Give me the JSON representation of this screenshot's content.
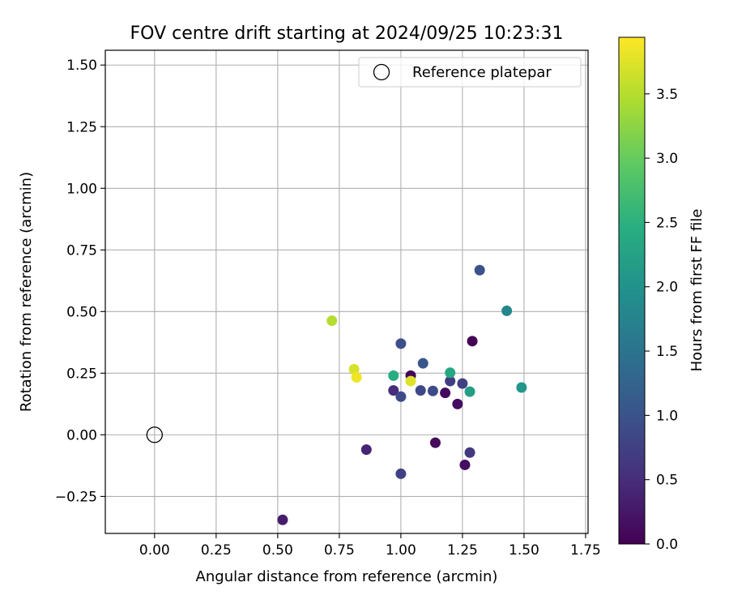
{
  "chart_data": {
    "type": "scatter",
    "title": "FOV centre drift starting at 2024/09/25 10:23:31",
    "xlabel": "Angular distance from reference (arcmin)",
    "ylabel": "Rotation from reference (arcmin)",
    "xlim": [
      -0.2,
      1.76
    ],
    "ylim": [
      -0.4,
      1.56
    ],
    "x_ticks": [
      0.0,
      0.25,
      0.5,
      0.75,
      1.0,
      1.25,
      1.5,
      1.75
    ],
    "x_tick_labels": [
      "0.00",
      "0.25",
      "0.50",
      "0.75",
      "1.00",
      "1.25",
      "1.50",
      "1.75"
    ],
    "y_ticks": [
      -0.25,
      0.0,
      0.25,
      0.5,
      0.75,
      1.0,
      1.25,
      1.5
    ],
    "y_tick_labels": [
      "−0.25",
      "0.00",
      "0.25",
      "0.50",
      "0.75",
      "1.00",
      "1.25",
      "1.50"
    ],
    "grid": true,
    "legend": {
      "location": "top-right",
      "label": "Reference platepar"
    },
    "reference_point": {
      "x": 0.0,
      "y": 0.0
    },
    "colorbar": {
      "label": "Hours from first FF file",
      "range": [
        0.0,
        3.94
      ],
      "ticks": [
        0.0,
        0.5,
        1.0,
        1.5,
        2.0,
        2.5,
        3.0,
        3.5
      ],
      "tick_labels": [
        "0.0",
        "0.5",
        "1.0",
        "1.5",
        "2.0",
        "2.5",
        "3.0",
        "3.5"
      ],
      "colormap": "viridis"
    },
    "points": [
      {
        "x": 1.29,
        "y": 0.38,
        "hours": 0.0
      },
      {
        "x": 1.04,
        "y": 0.24,
        "hours": 0.05
      },
      {
        "x": 1.18,
        "y": 0.17,
        "hours": 0.1
      },
      {
        "x": 1.23,
        "y": 0.125,
        "hours": 0.15
      },
      {
        "x": 1.14,
        "y": -0.032,
        "hours": 0.1
      },
      {
        "x": 1.26,
        "y": -0.122,
        "hours": 0.15
      },
      {
        "x": 0.52,
        "y": -0.345,
        "hours": 0.3
      },
      {
        "x": 0.86,
        "y": -0.06,
        "hours": 0.4
      },
      {
        "x": 0.97,
        "y": 0.18,
        "hours": 0.5
      },
      {
        "x": 1.28,
        "y": -0.072,
        "hours": 0.65
      },
      {
        "x": 1.0,
        "y": -0.158,
        "hours": 0.75
      },
      {
        "x": 1.2,
        "y": 0.218,
        "hours": 0.7
      },
      {
        "x": 1.25,
        "y": 0.208,
        "hours": 0.75
      },
      {
        "x": 1.08,
        "y": 0.18,
        "hours": 0.85
      },
      {
        "x": 1.13,
        "y": 0.178,
        "hours": 0.9
      },
      {
        "x": 1.0,
        "y": 0.155,
        "hours": 0.9
      },
      {
        "x": 1.0,
        "y": 0.37,
        "hours": 0.95
      },
      {
        "x": 1.32,
        "y": 0.668,
        "hours": 1.0
      },
      {
        "x": 1.09,
        "y": 0.29,
        "hours": 1.05
      },
      {
        "x": 1.43,
        "y": 0.503,
        "hours": 1.8
      },
      {
        "x": 1.49,
        "y": 0.192,
        "hours": 2.05
      },
      {
        "x": 1.28,
        "y": 0.175,
        "hours": 2.2
      },
      {
        "x": 1.2,
        "y": 0.252,
        "hours": 2.35
      },
      {
        "x": 0.97,
        "y": 0.24,
        "hours": 2.45
      },
      {
        "x": 0.72,
        "y": 0.463,
        "hours": 3.5
      },
      {
        "x": 0.81,
        "y": 0.266,
        "hours": 3.7
      },
      {
        "x": 1.04,
        "y": 0.218,
        "hours": 3.75
      },
      {
        "x": 0.82,
        "y": 0.233,
        "hours": 3.85
      }
    ]
  }
}
